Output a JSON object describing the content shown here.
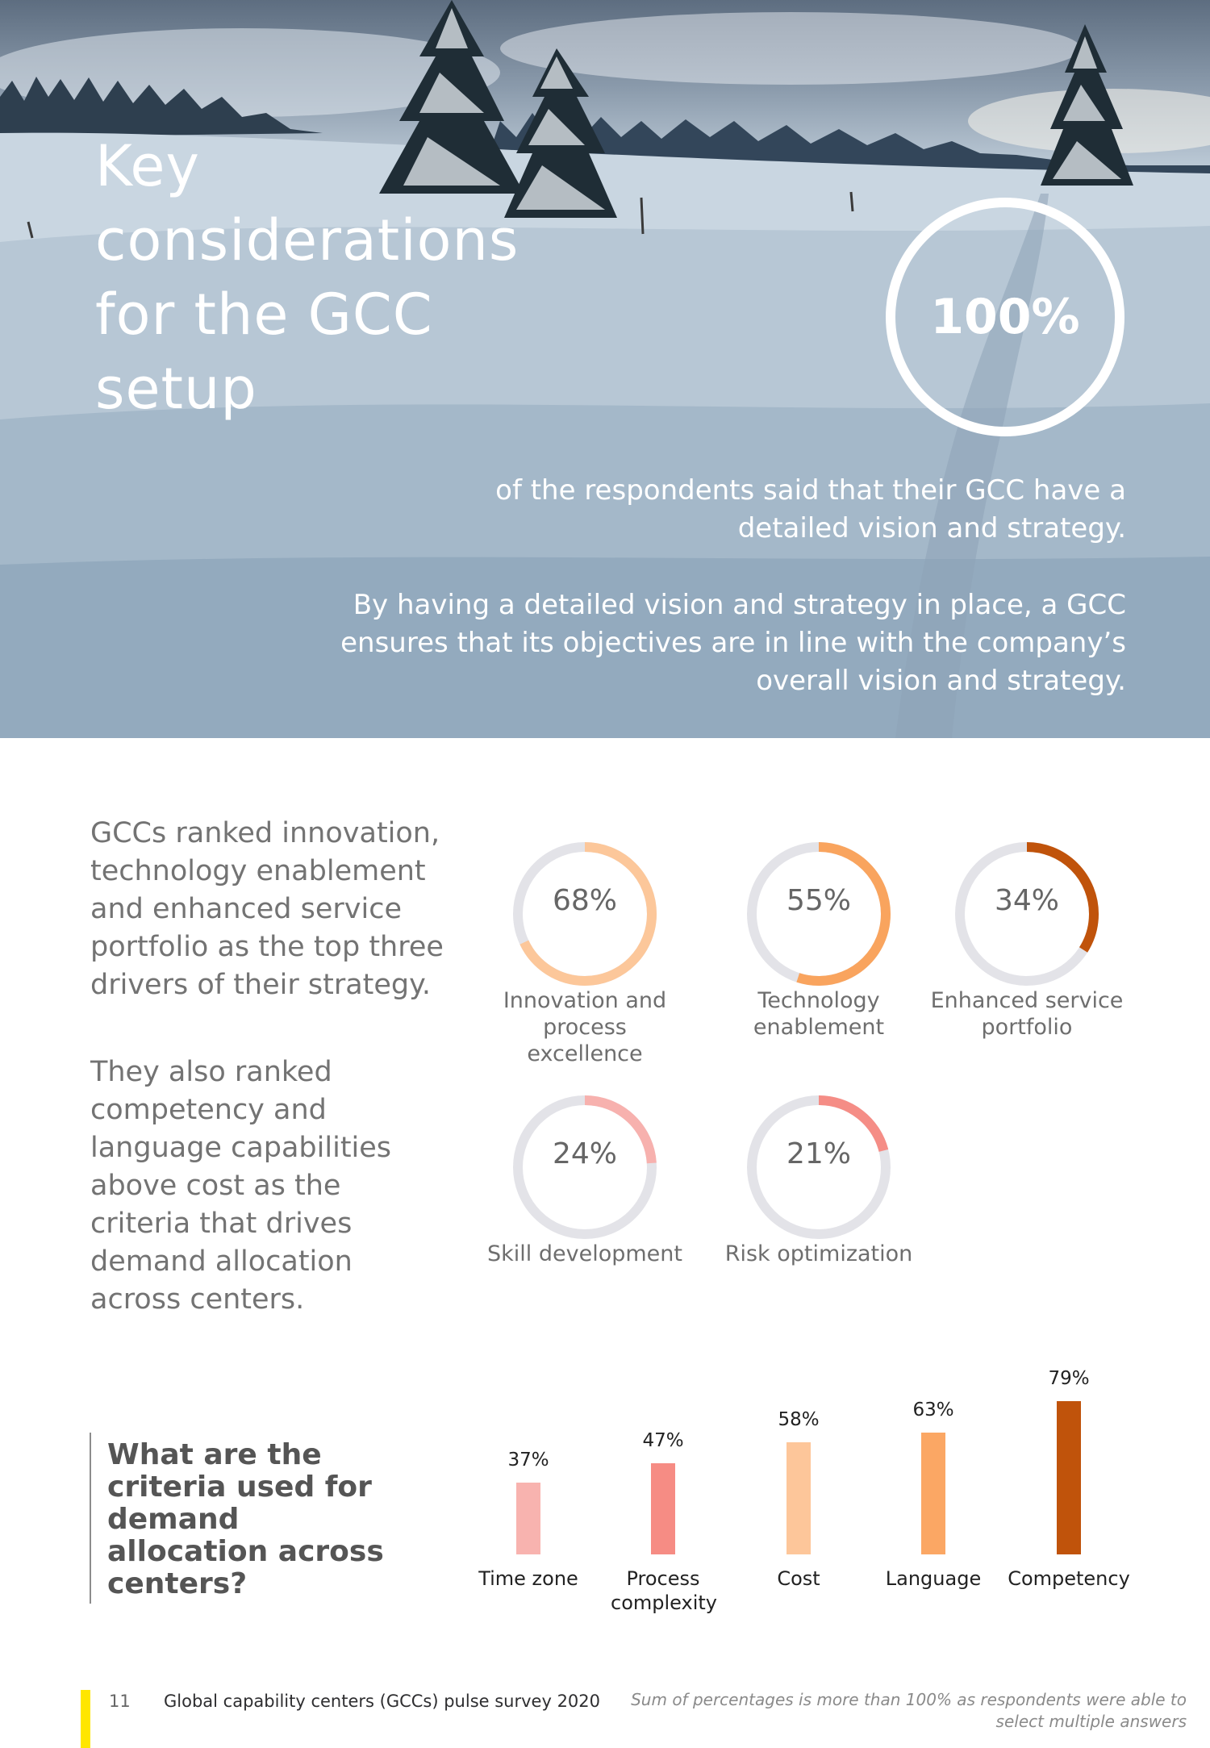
{
  "hero": {
    "title": "Key considerations for the GCC setup",
    "stat_value": "100%",
    "stat_text": "of the respondents said that their GCC have a detailed vision and strategy.",
    "stat_text_2": "By having a detailed vision and strategy in place, a GCC ensures that its objectives are in line with the company’s overall vision and strategy."
  },
  "intro": {
    "paragraph_1": "GCCs ranked innovation, technology enablement and enhanced service portfolio as the top three drivers of their strategy.",
    "paragraph_2": "They also ranked competency and language capabilities above cost as the criteria that drives demand allocation across centers."
  },
  "drivers": [
    {
      "value": 68,
      "value_label": "68%",
      "label": "Innovation and process excellence",
      "color": "#fcc79a"
    },
    {
      "value": 55,
      "value_label": "55%",
      "label": "Technology enablement",
      "color": "#f9a45e"
    },
    {
      "value": 34,
      "value_label": "34%",
      "label": "Enhanced service portfolio",
      "color": "#c0530b"
    },
    {
      "value": 24,
      "value_label": "24%",
      "label": "Skill development",
      "color": "#f7b1ae"
    },
    {
      "value": 21,
      "value_label": "21%",
      "label": "Risk optimization",
      "color": "#f58d86"
    }
  ],
  "ring_track_color": "#e3e3e8",
  "question": "What are the criteria used for demand allocation across centers?",
  "chart_data": {
    "type": "bar",
    "categories": [
      "Time zone",
      "Process complexity",
      "Cost",
      "Language",
      "Competency"
    ],
    "values": [
      37,
      47,
      58,
      63,
      79
    ],
    "value_labels": [
      "37%",
      "47%",
      "58%",
      "63%",
      "79%"
    ],
    "colors": [
      "#f8b3af",
      "#f68c84",
      "#fdc69a",
      "#fba764",
      "#c0530b"
    ],
    "ylim": [
      0,
      100
    ],
    "grid": false
  },
  "footer": {
    "page_number": "11",
    "publication": "Global capability centers (GCCs) pulse survey 2020",
    "note": "Sum of percentages is more than 100% as respondents were able to select multiple answers",
    "accent_color": "#ffe600"
  }
}
